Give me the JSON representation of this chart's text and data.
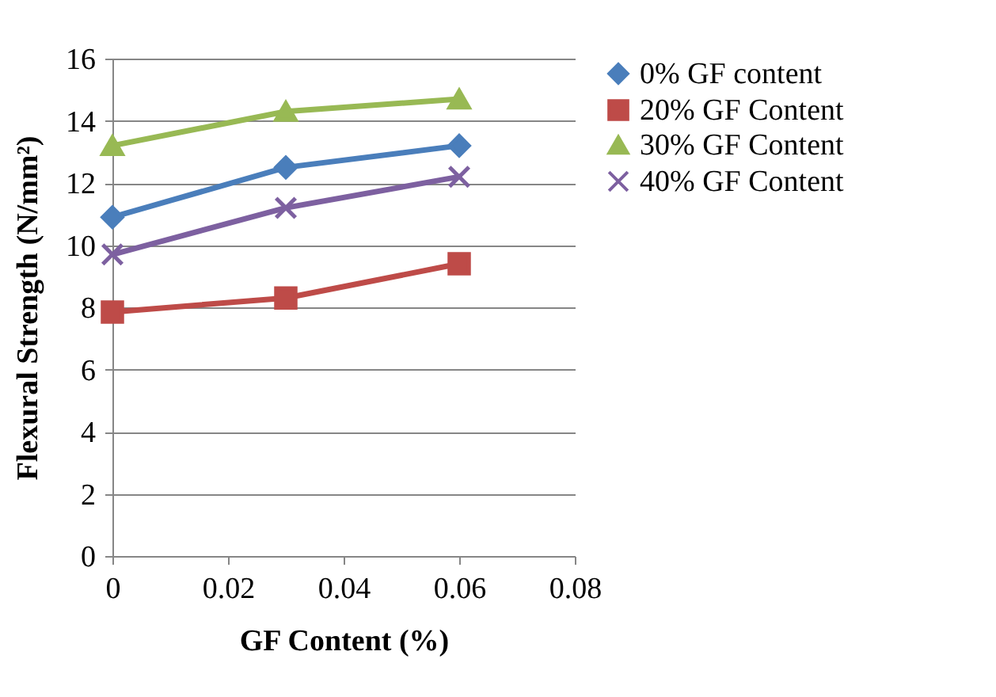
{
  "chart_data": {
    "type": "line",
    "xlabel": "GF Content (%)",
    "ylabel": "Flexural Strength (N/mm²)",
    "x": [
      0,
      0.03,
      0.06
    ],
    "xlim": [
      0,
      0.08
    ],
    "xticks": [
      0,
      0.02,
      0.04,
      0.06,
      0.08
    ],
    "ylim": [
      0,
      16
    ],
    "yticks": [
      0,
      2,
      4,
      6,
      8,
      10,
      12,
      14,
      16
    ],
    "grid": "y",
    "legend": "right",
    "series": [
      {
        "name": "0% GF content",
        "color": "#4a7ebb",
        "marker": "diamond",
        "values": [
          10.9,
          12.5,
          13.2
        ]
      },
      {
        "name": "20% GF Content",
        "color": "#be4b48",
        "marker": "square",
        "values": [
          7.85,
          8.3,
          9.4
        ]
      },
      {
        "name": "30% GF Content",
        "color": "#98b954",
        "marker": "triangle",
        "values": [
          13.2,
          14.3,
          14.7
        ]
      },
      {
        "name": "40% GF Content",
        "color": "#7d60a0",
        "marker": "cross",
        "values": [
          9.7,
          11.2,
          12.2
        ]
      }
    ]
  }
}
